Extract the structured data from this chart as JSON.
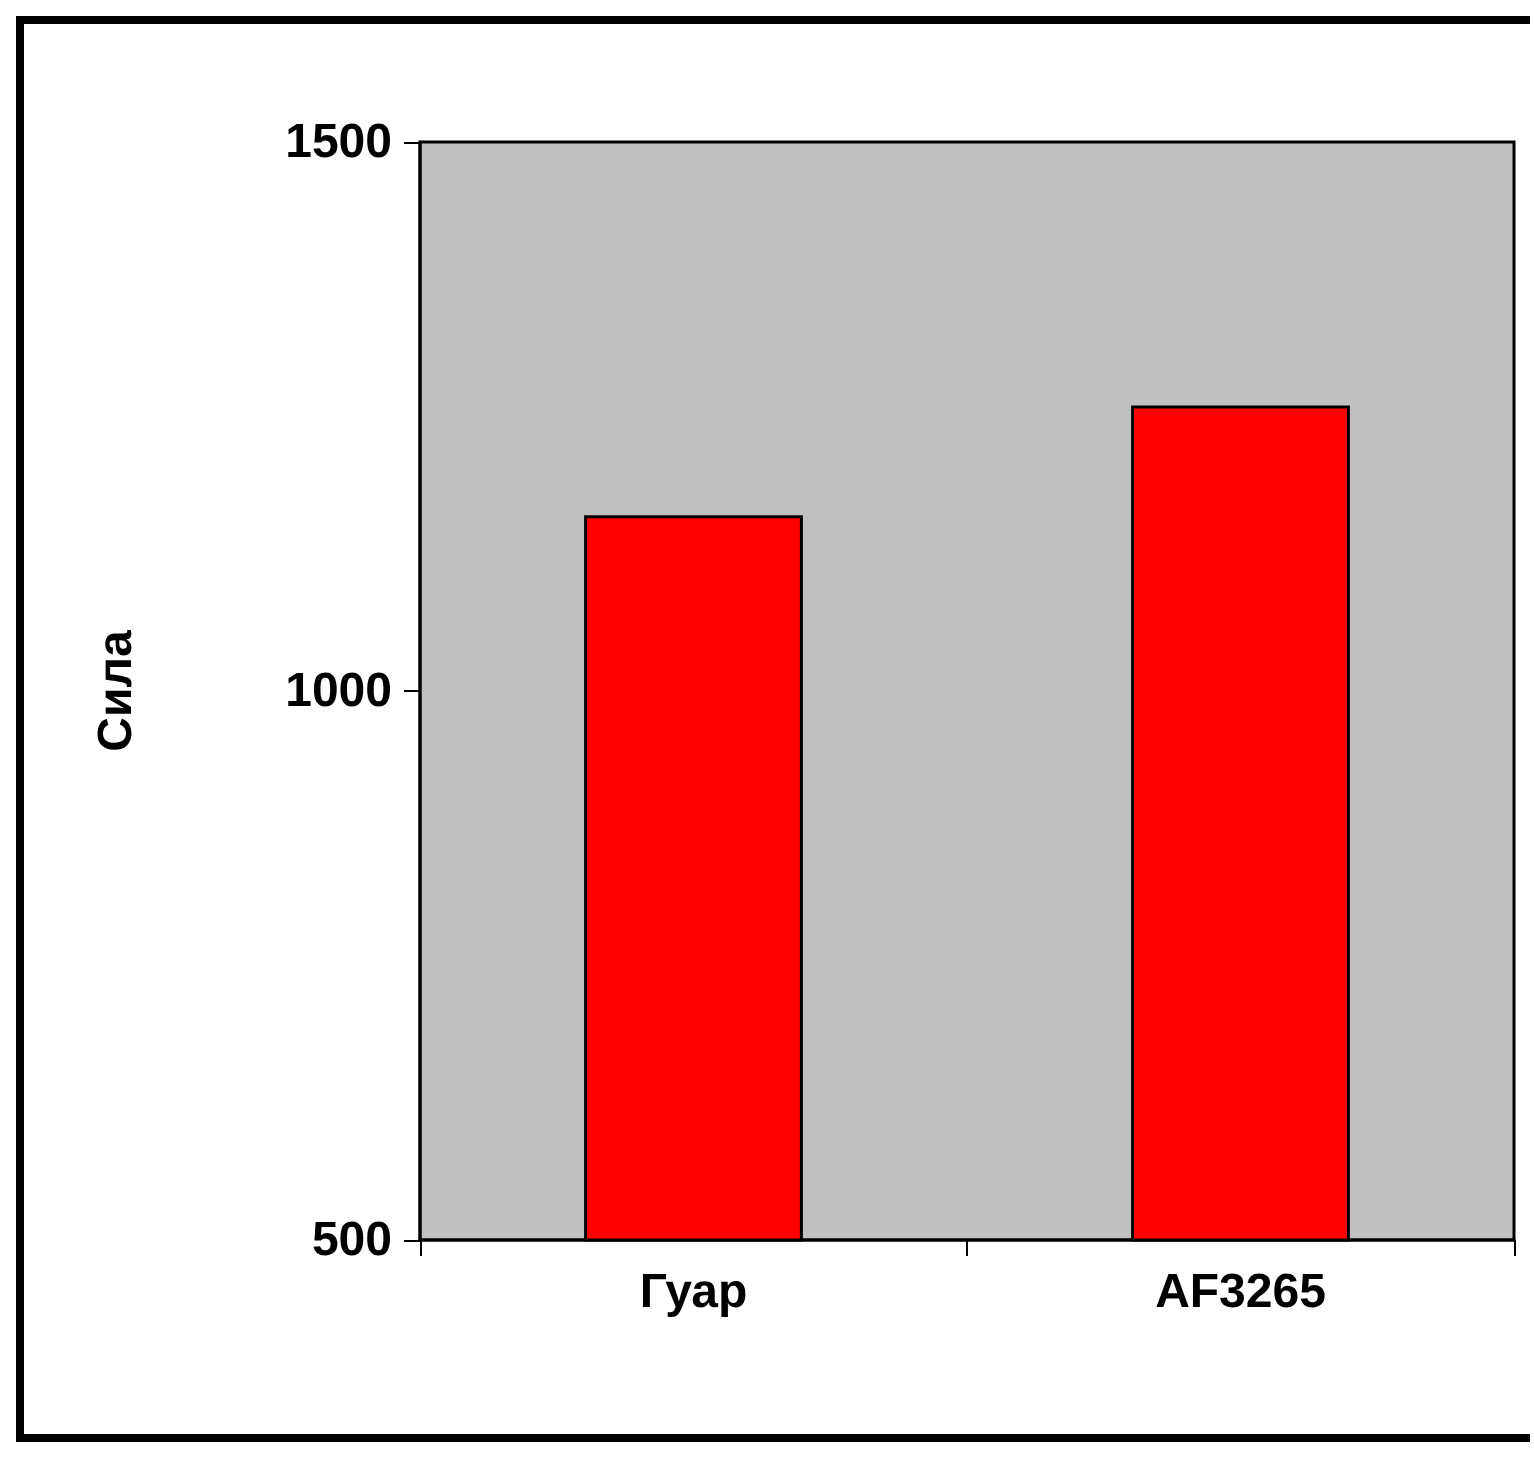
{
  "chart_data": {
    "type": "bar",
    "ylabel": "Сила",
    "categories": [
      "Гуар",
      "AF3265"
    ],
    "values": [
      1160,
      1260
    ],
    "color": "#ff0000",
    "ylim": [
      500,
      1500
    ],
    "yticks": [
      500,
      1000,
      1500
    ],
    "grid": false
  }
}
